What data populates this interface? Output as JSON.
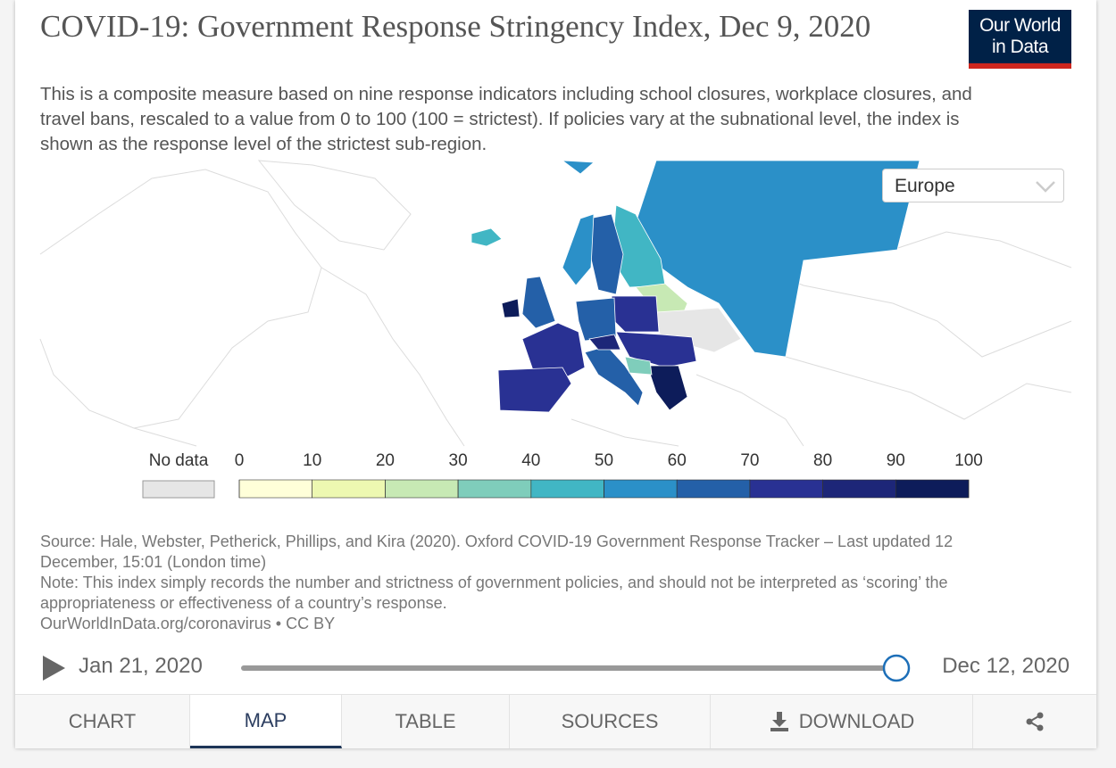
{
  "title": "COVID-19: Government Response Stringency Index, Dec 9, 2020",
  "subtitle": "This is a composite measure based on nine response indicators including school closures, workplace closures, and travel bans, rescaled to a value from 0 to 100 (100 = strictest). If policies vary at the subnational level, the index is shown as the response level of the strictest sub-region.",
  "logo": [
    "Our World",
    "in Data"
  ],
  "region": "Europe",
  "chart_data": {
    "type": "choropleth",
    "legend": {
      "no_data": "No data",
      "ticks": [
        0,
        10,
        20,
        30,
        40,
        50,
        60,
        70,
        80,
        90,
        100
      ],
      "colors": [
        "#ffffd9",
        "#edf8b1",
        "#c7e9b4",
        "#7fcdbb",
        "#41b6c4",
        "#2b90c8",
        "#2460a8",
        "#293193",
        "#1d2678",
        "#0d1c5a"
      ]
    }
  },
  "source": "Source: Hale, Webster, Petherick, Phillips, and Kira (2020). Oxford COVID-19 Government Response Tracker – Last updated 12 December, 15:01 (London time)",
  "note": "Note: This index simply records the number and strictness of government policies, and should not be interpreted as ‘scoring’ the appropriateness or effectiveness of a country’s response.",
  "license": "OurWorldInData.org/coronavirus • CC BY",
  "timeline": {
    "start": "Jan 21, 2020",
    "end": "Dec 12, 2020"
  },
  "tabs": [
    "CHART",
    "MAP",
    "TABLE",
    "SOURCES",
    "DOWNLOAD"
  ]
}
